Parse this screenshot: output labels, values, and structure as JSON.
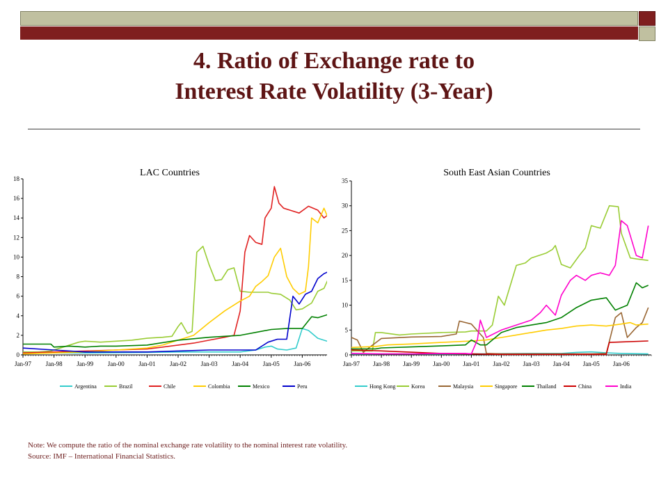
{
  "slide": {
    "title_line1": "4. Ratio of Exchange rate to",
    "title_line2": "Interest Rate Volatility (3-Year)",
    "note": "Note: We compute the ratio of the nominal exchange rate volatility to the nominal interest rate volatility.",
    "source": "Source: IMF – International Financial Statistics."
  },
  "chart_data": [
    {
      "type": "line",
      "title": "LAC Countries",
      "xlabel": "",
      "ylabel": "",
      "xlim": [
        1997.0,
        2007.0
      ],
      "ylim": [
        0,
        18
      ],
      "yticks": [
        0,
        2,
        4,
        6,
        8,
        10,
        12,
        14,
        16,
        18
      ],
      "xtick_labels": [
        "Jan-97",
        "Jan-98",
        "Jan-99",
        "Jan-00",
        "Jan-01",
        "Jan-02",
        "Jan-03",
        "Jan-04",
        "Jan-05",
        "Jan-06"
      ],
      "xtick_values": [
        1997,
        1998,
        1999,
        2000,
        2001,
        2002,
        2003,
        2004,
        2005,
        2006
      ],
      "legend_position": "bottom",
      "grid": false,
      "series": [
        {
          "name": "Argentina",
          "color": "#33cccc",
          "x": [
            1997.0,
            1999.0,
            2001.0,
            2002.0,
            2003.0,
            2004.0,
            2004.5,
            2004.8,
            2005.0,
            2005.2,
            2005.5,
            2005.8,
            2006.0,
            2006.2,
            2006.5,
            2006.9
          ],
          "y": [
            0.2,
            0.2,
            0.25,
            0.3,
            0.3,
            0.3,
            0.5,
            0.8,
            0.9,
            0.6,
            0.5,
            0.7,
            2.7,
            2.5,
            1.7,
            1.3
          ]
        },
        {
          "name": "Brazil",
          "color": "#99cc33",
          "x": [
            1997.0,
            1997.5,
            1997.9,
            1998.2,
            1998.8,
            1999.0,
            1999.5,
            2000.0,
            2000.5,
            2001.0,
            2001.5,
            2001.8,
            2002.0,
            2002.1,
            2002.3,
            2002.45,
            2002.6,
            2002.8,
            2003.0,
            2003.2,
            2003.4,
            2003.6,
            2003.8,
            2004.0,
            2004.3,
            2004.6,
            2004.9,
            2005.0,
            2005.3,
            2005.6,
            2005.8,
            2006.0,
            2006.3,
            2006.5,
            2006.7,
            2006.9
          ],
          "y": [
            0.3,
            0.3,
            0.4,
            0.7,
            1.3,
            1.4,
            1.3,
            1.4,
            1.5,
            1.7,
            1.8,
            1.9,
            2.9,
            3.3,
            2.2,
            2.4,
            10.5,
            11.1,
            9.2,
            7.6,
            7.7,
            8.7,
            8.9,
            6.5,
            6.4,
            6.4,
            6.4,
            6.3,
            6.2,
            5.6,
            4.6,
            4.7,
            5.3,
            6.5,
            6.8,
            8.2
          ]
        },
        {
          "name": "Chile",
          "color": "#e02020",
          "x": [
            1997.0,
            1998.0,
            1999.0,
            2000.0,
            2001.0,
            2001.5,
            2002.0,
            2002.5,
            2003.0,
            2003.5,
            2003.8,
            2004.0,
            2004.15,
            2004.3,
            2004.5,
            2004.7,
            2004.8,
            2004.9,
            2005.0,
            2005.1,
            2005.25,
            2005.4,
            2005.6,
            2005.9,
            2006.2,
            2006.5,
            2006.7,
            2006.9
          ],
          "y": [
            0.2,
            0.3,
            0.4,
            0.5,
            0.6,
            0.8,
            1.0,
            1.2,
            1.5,
            1.8,
            2.0,
            4.5,
            10.5,
            12.2,
            11.5,
            11.3,
            14.0,
            14.5,
            15.0,
            17.2,
            15.5,
            15.0,
            14.8,
            14.5,
            15.2,
            14.8,
            14.0,
            14.5
          ]
        },
        {
          "name": "Colombia",
          "color": "#ffcc00",
          "x": [
            1997.0,
            1998.0,
            1999.0,
            2000.0,
            2001.0,
            2001.5,
            2002.0,
            2002.5,
            2003.0,
            2003.5,
            2004.0,
            2004.3,
            2004.5,
            2004.7,
            2004.9,
            2005.1,
            2005.3,
            2005.5,
            2005.7,
            2005.9,
            2006.1,
            2006.2,
            2006.3,
            2006.5,
            2006.7,
            2006.9
          ],
          "y": [
            0.1,
            0.2,
            0.3,
            0.5,
            0.7,
            1.0,
            1.5,
            2.0,
            3.3,
            4.5,
            5.5,
            6.0,
            7.0,
            7.5,
            8.1,
            10.0,
            10.9,
            8.0,
            6.8,
            6.2,
            6.5,
            9.0,
            14.0,
            13.5,
            15.0,
            13.5
          ]
        },
        {
          "name": "Mexico",
          "color": "#008000",
          "x": [
            1997.0,
            1997.9,
            1998.0,
            1998.5,
            1999.0,
            1999.5,
            2000.0,
            2001.0,
            2002.0,
            2003.0,
            2004.0,
            2004.5,
            2005.0,
            2005.5,
            2006.0,
            2006.3,
            2006.5,
            2006.9
          ],
          "y": [
            1.1,
            1.1,
            0.8,
            0.9,
            0.8,
            0.9,
            0.9,
            1.0,
            1.5,
            1.8,
            2.0,
            2.3,
            2.6,
            2.7,
            2.7,
            3.9,
            3.8,
            4.2
          ]
        },
        {
          "name": "Peru",
          "color": "#0000cc",
          "x": [
            1997.0,
            1998.0,
            1999.0,
            2000.0,
            2001.0,
            2002.0,
            2003.0,
            2004.0,
            2004.5,
            2004.9,
            2005.2,
            2005.5,
            2005.7,
            2005.9,
            2006.1,
            2006.3,
            2006.5,
            2006.7,
            2006.9
          ],
          "y": [
            0.7,
            0.5,
            0.3,
            0.3,
            0.3,
            0.4,
            0.5,
            0.5,
            0.5,
            1.3,
            1.6,
            1.6,
            6.0,
            5.2,
            6.2,
            6.5,
            7.8,
            8.3,
            8.6
          ]
        }
      ]
    },
    {
      "type": "line",
      "title": "South East Asian Countries",
      "xlabel": "",
      "ylabel": "",
      "xlim": [
        1997.0,
        2007.0
      ],
      "ylim": [
        0,
        35
      ],
      "yticks": [
        0,
        5,
        10,
        15,
        20,
        25,
        30,
        35
      ],
      "xtick_labels": [
        "Jan-97",
        "Jan-98",
        "Jan-99",
        "Jan-00",
        "Jan-01",
        "Jan-02",
        "Jan-03",
        "Jan-04",
        "Jan-05",
        "Jan-06"
      ],
      "xtick_values": [
        1997,
        1998,
        1999,
        2000,
        2001,
        2002,
        2003,
        2004,
        2005,
        2006
      ],
      "legend_position": "bottom",
      "grid": false,
      "series": [
        {
          "name": "Hong Kong",
          "color": "#33cccc",
          "x": [
            1997.0,
            1999.0,
            2001.0,
            2003.0,
            2004.0,
            2004.5,
            2005.0,
            2005.5,
            2006.0,
            2006.9
          ],
          "y": [
            0.2,
            0.2,
            0.2,
            0.3,
            0.3,
            0.5,
            0.6,
            0.4,
            0.3,
            0.2
          ]
        },
        {
          "name": "Korea",
          "color": "#99cc33",
          "x": [
            1997.0,
            1997.7,
            1997.8,
            1998.0,
            1998.6,
            1999.0,
            2000.0,
            2000.8,
            2001.0,
            2001.5,
            2001.7,
            2001.9,
            2002.1,
            2002.5,
            2002.8,
            2003.0,
            2003.5,
            2003.7,
            2003.8,
            2004.0,
            2004.3,
            2004.6,
            2004.8,
            2005.0,
            2005.3,
            2005.6,
            2005.9,
            2006.0,
            2006.3,
            2006.5,
            2006.9
          ],
          "y": [
            0.8,
            0.8,
            4.5,
            4.5,
            4.0,
            4.2,
            4.5,
            4.6,
            4.8,
            4.8,
            6.0,
            11.8,
            10.0,
            18.0,
            18.5,
            19.5,
            20.5,
            21.2,
            22.0,
            18.2,
            17.5,
            20.0,
            21.5,
            26.0,
            25.5,
            30.0,
            29.8,
            24.5,
            19.5,
            19.3,
            19.0
          ]
        },
        {
          "name": "Malaysia",
          "color": "#996633",
          "x": [
            1997.0,
            1997.2,
            1997.4,
            1997.6,
            1998.0,
            1999.0,
            2000.0,
            2000.5,
            2000.6,
            2001.0,
            2001.4,
            2001.5,
            2002.0,
            2003.0,
            2004.0,
            2005.0,
            2005.5,
            2005.8,
            2006.0,
            2006.2,
            2006.5,
            2006.7,
            2006.9
          ],
          "y": [
            3.5,
            3.0,
            0.5,
            1.5,
            3.3,
            3.6,
            3.7,
            4.2,
            6.8,
            6.2,
            3.5,
            0.3,
            0.2,
            0.2,
            0.2,
            0.2,
            0.3,
            7.5,
            8.5,
            3.5,
            5.5,
            6.5,
            9.5
          ]
        },
        {
          "name": "Singapore",
          "color": "#ffcc00",
          "x": [
            1997.0,
            1997.8,
            1998.2,
            1999.0,
            2000.0,
            2001.0,
            2001.5,
            2002.0,
            2002.5,
            2003.0,
            2003.5,
            2004.0,
            2004.5,
            2005.0,
            2005.5,
            2006.0,
            2006.3,
            2006.5,
            2006.9
          ],
          "y": [
            1.5,
            1.7,
            2.0,
            2.2,
            2.5,
            2.8,
            3.0,
            3.5,
            4.0,
            4.5,
            5.0,
            5.3,
            5.8,
            6.0,
            5.8,
            6.2,
            6.5,
            6.0,
            6.2
          ]
        },
        {
          "name": "Thailand",
          "color": "#008000",
          "x": [
            1997.0,
            1997.8,
            1998.0,
            1999.0,
            2000.0,
            2000.8,
            2001.0,
            2001.3,
            2001.5,
            2001.8,
            2002.0,
            2002.5,
            2003.0,
            2003.5,
            2004.0,
            2004.5,
            2005.0,
            2005.5,
            2005.8,
            2006.0,
            2006.2,
            2006.5,
            2006.7,
            2006.9
          ],
          "y": [
            1.2,
            1.2,
            1.4,
            1.6,
            1.8,
            2.0,
            3.0,
            2.0,
            2.0,
            3.5,
            4.5,
            5.5,
            6.0,
            6.5,
            7.5,
            9.5,
            11.0,
            11.5,
            9.0,
            9.5,
            10.0,
            14.5,
            13.5,
            14.0
          ]
        },
        {
          "name": "China",
          "color": "#cc0000",
          "x": [
            1997.0,
            1998.0,
            2000.0,
            2001.0,
            2002.0,
            2003.0,
            2004.0,
            2005.0,
            2005.5,
            2005.6,
            2006.0,
            2006.9
          ],
          "y": [
            1.0,
            0.8,
            0.3,
            0.2,
            0.1,
            0.1,
            0.1,
            0.1,
            0.1,
            2.5,
            2.6,
            2.8
          ]
        },
        {
          "name": "India",
          "color": "#ff00cc",
          "x": [
            1997.0,
            1998.0,
            1999.0,
            2000.0,
            2000.8,
            2001.0,
            2001.2,
            2001.3,
            2001.5,
            2002.0,
            2002.5,
            2003.0,
            2003.3,
            2003.5,
            2003.8,
            2004.0,
            2004.3,
            2004.5,
            2004.8,
            2005.0,
            2005.3,
            2005.6,
            2005.8,
            2006.0,
            2006.2,
            2006.5,
            2006.7,
            2006.9
          ],
          "y": [
            0.3,
            0.2,
            0.2,
            0.3,
            0.3,
            0.2,
            3.0,
            7.0,
            3.5,
            5.0,
            6.0,
            7.0,
            8.5,
            10.0,
            8.0,
            12.0,
            15.0,
            16.0,
            15.0,
            16.0,
            16.5,
            16.0,
            18.0,
            27.0,
            26.0,
            20.0,
            19.5,
            26.0
          ]
        }
      ]
    }
  ]
}
